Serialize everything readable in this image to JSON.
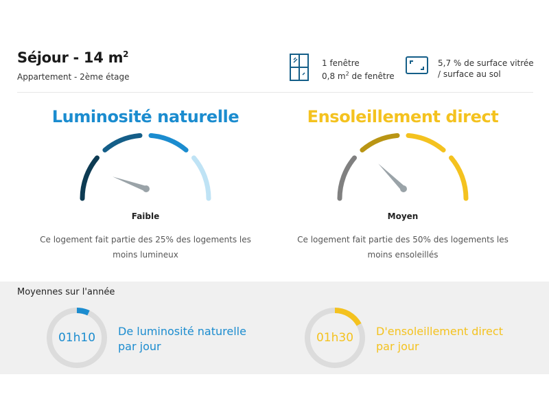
{
  "header": {
    "room_label": "Séjour - 14 m",
    "room_sup": "2",
    "location": "Appartement - 2ème étage",
    "window": {
      "count_label": "1 fenêtre",
      "area_prefix": "0,8 m",
      "area_sup": "2",
      "area_suffix": " de fenêtre"
    },
    "surface": {
      "line1": "5,7 % de surface vitrée",
      "line2": "/ surface au sol"
    }
  },
  "gauges": {
    "luminosity": {
      "title": "Luminosité naturelle",
      "level": "Faible",
      "description": "Ce logement fait partie des 25% des logements les moins lumineux",
      "color": "#1b8ccf",
      "segment_colors": [
        "#0d3b53",
        "#145e88",
        "#1b8ccf",
        "#bfe3f5"
      ],
      "level_index": 0
    },
    "sunshine": {
      "title": "Ensoleillement direct",
      "level": "Moyen",
      "description": "Ce logement fait partie des 50% des logements les moins ensoleillés",
      "color": "#f4c21f",
      "segment_colors": [
        "#808080",
        "#b99514",
        "#f4c21f",
        "#f4c21f"
      ],
      "level_index": 1
    }
  },
  "averages": {
    "title": "Moyennes sur l'année",
    "luminosity": {
      "time": "01h10",
      "label_line1": "De luminosité naturelle",
      "label_line2": "par jour",
      "color": "#1b8ccf",
      "fraction": 0.07
    },
    "sunshine": {
      "time": "01h30",
      "label_line1": "D'ensoleillement direct",
      "label_line2": "par jour",
      "color": "#f4c21f",
      "fraction": 0.17
    }
  },
  "icons": {
    "window": "window-icon",
    "surface": "surface-ratio-icon"
  }
}
